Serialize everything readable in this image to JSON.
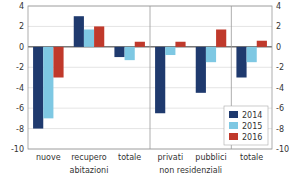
{
  "chart_data": {
    "type": "bar",
    "categories": [
      "nuove",
      "recupero",
      "totale",
      "privati",
      "pubblici",
      "totale"
    ],
    "annotations": [
      "abitazioni",
      "non residenziali"
    ],
    "series": [
      {
        "name": "2014",
        "color": "#1F3A6E",
        "values": [
          -8.0,
          3.0,
          -1.0,
          -6.5,
          -4.5,
          -3.0
        ]
      },
      {
        "name": "2015",
        "color": "#7EC8E3",
        "values": [
          -7.0,
          1.7,
          -1.3,
          -0.8,
          -1.5,
          -1.5
        ]
      },
      {
        "name": "2016",
        "color": "#C0392B",
        "values": [
          -3.0,
          2.0,
          0.5,
          0.5,
          1.7,
          0.6
        ]
      }
    ],
    "ylim": [
      -10,
      4
    ],
    "yticks": [
      -10,
      -8,
      -6,
      -4,
      -2,
      0,
      2,
      4
    ],
    "y2lim": [
      -10,
      4
    ],
    "y2ticks": [
      -10,
      -8,
      -6,
      -4,
      -2,
      0,
      2,
      4
    ],
    "grid": true,
    "legend": "lower right"
  }
}
